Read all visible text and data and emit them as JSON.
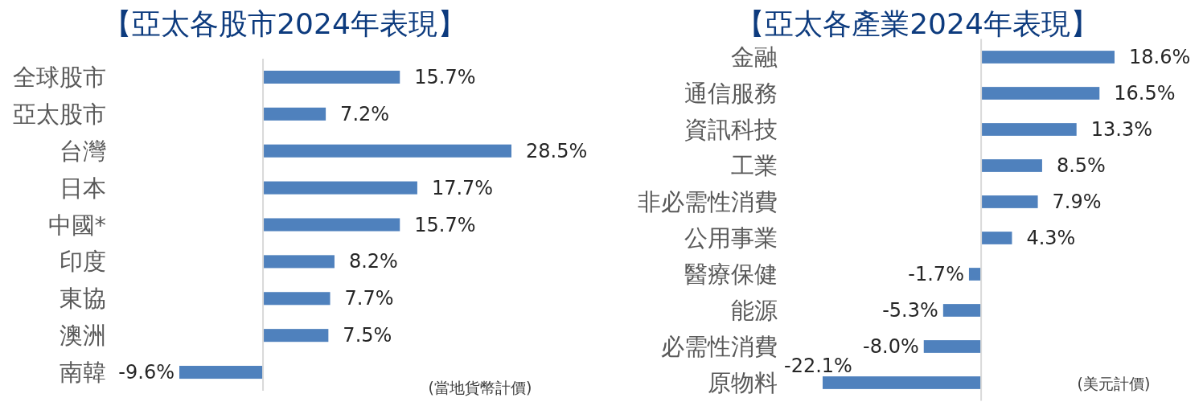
{
  "chart_data": [
    {
      "type": "bar",
      "orientation": "horizontal",
      "title": "【亞太各股市2024年表現】",
      "categories": [
        "全球股市",
        "亞太股市",
        "台灣",
        "日本",
        "中國*",
        "印度",
        "東協",
        "澳洲",
        "南韓"
      ],
      "values": [
        15.7,
        7.2,
        28.5,
        17.7,
        15.7,
        8.2,
        7.7,
        7.5,
        -9.6
      ],
      "color": "#4f81bd",
      "value_labels": [
        "15.7%",
        "7.2%",
        "28.5%",
        "17.7%",
        "15.7%",
        "8.2%",
        "7.7%",
        "7.5%",
        "-9.6%"
      ],
      "annotations": [
        "(當地貨幣計價)"
      ]
    },
    {
      "type": "bar",
      "orientation": "horizontal",
      "title": "【亞太各產業2024年表現】",
      "categories": [
        "金融",
        "通信服務",
        "資訊科技",
        "工業",
        "非必需性消費",
        "公用事業",
        "醫療保健",
        "能源",
        "必需性消費",
        "原物料"
      ],
      "values": [
        18.6,
        16.5,
        13.3,
        8.5,
        7.9,
        4.3,
        -1.7,
        -5.3,
        -8.0,
        -22.1
      ],
      "color": "#4f81bd",
      "value_labels": [
        "18.6%",
        "16.5%",
        "13.3%",
        "8.5%",
        "7.9%",
        "4.3%",
        "-1.7%",
        "-5.3%",
        "-8.0%",
        "-22.1%"
      ],
      "annotations": [
        "(美元計價)"
      ]
    }
  ]
}
